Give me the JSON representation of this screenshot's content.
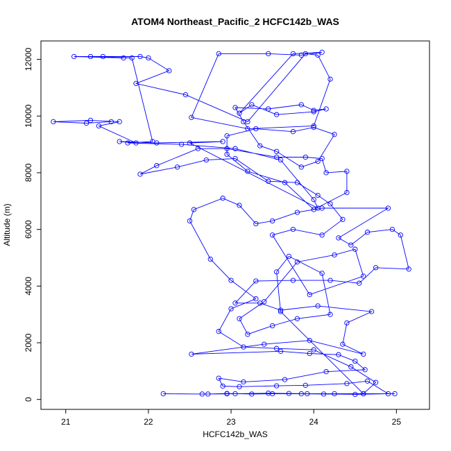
{
  "chart_data": {
    "type": "line",
    "title": "ATOM4 Northeast_Pacific_2 HCFC142b_WAS",
    "xlabel": "HCFC142b_WAS",
    "ylabel": "Altitude (m)",
    "xlim": [
      20.7,
      25.4
    ],
    "ylim": [
      -350,
      12650
    ],
    "x_ticks": [
      21,
      22,
      23,
      24,
      25
    ],
    "y_ticks": [
      0,
      2000,
      4000,
      6000,
      8000,
      10000,
      12000
    ],
    "x_tick_labels": [
      "21",
      "22",
      "23",
      "24",
      "25"
    ],
    "y_tick_labels": [
      "0",
      "2000",
      "4000",
      "6000",
      "8000",
      "10000",
      "12000"
    ],
    "marker": "open-circle",
    "grid": false,
    "series": [
      {
        "color": "#0000ff",
        "points": [
          [
            22.18,
            200
          ],
          [
            22.65,
            190
          ],
          [
            22.95,
            200
          ],
          [
            23.5,
            200
          ],
          [
            23.92,
            200
          ],
          [
            24.25,
            200
          ],
          [
            24.98,
            200
          ],
          [
            24.6,
            200
          ],
          [
            24.12,
            190
          ],
          [
            23.85,
            200
          ],
          [
            23.45,
            220
          ],
          [
            23.05,
            200
          ],
          [
            22.72,
            190
          ],
          [
            22.95,
            210
          ],
          [
            23.25,
            190
          ],
          [
            23.7,
            210
          ],
          [
            24.5,
            180
          ],
          [
            24.9,
            200
          ],
          [
            24.65,
            650
          ],
          [
            24.4,
            560
          ],
          [
            23.9,
            500
          ],
          [
            23.55,
            480
          ],
          [
            23.1,
            450
          ],
          [
            22.9,
            470
          ],
          [
            22.85,
            750
          ],
          [
            23.15,
            620
          ],
          [
            23.65,
            700
          ],
          [
            24.15,
            980
          ],
          [
            24.62,
            1050
          ],
          [
            24.5,
            1350
          ],
          [
            24.3,
            1580
          ],
          [
            23.95,
            1620
          ],
          [
            23.6,
            1700
          ],
          [
            22.52,
            1600
          ],
          [
            23.4,
            1950
          ],
          [
            23.95,
            2080
          ],
          [
            24.6,
            1600
          ],
          [
            24.35,
            1950
          ],
          [
            24.4,
            2700
          ],
          [
            24.7,
            3100
          ],
          [
            24.05,
            3300
          ],
          [
            23.6,
            3150
          ],
          [
            23.35,
            3400
          ],
          [
            23.05,
            3400
          ],
          [
            23.3,
            4180
          ],
          [
            23.75,
            4200
          ],
          [
            24.2,
            4200
          ],
          [
            24.55,
            4100
          ],
          [
            24.75,
            4650
          ],
          [
            25.15,
            4600
          ],
          [
            25.05,
            5800
          ],
          [
            24.95,
            6000
          ],
          [
            24.65,
            5900
          ],
          [
            24.45,
            5450
          ],
          [
            24.3,
            5700
          ],
          [
            24.9,
            6750
          ],
          [
            24.1,
            6750
          ],
          [
            23.8,
            6600
          ],
          [
            23.5,
            6300
          ],
          [
            23.3,
            6200
          ],
          [
            23.1,
            6850
          ],
          [
            22.9,
            7100
          ],
          [
            22.55,
            6700
          ],
          [
            22.5,
            6300
          ],
          [
            22.75,
            4950
          ],
          [
            23.0,
            4200
          ],
          [
            23.3,
            3550
          ],
          [
            23.0,
            3200
          ],
          [
            22.85,
            2400
          ],
          [
            23.15,
            1850
          ],
          [
            23.55,
            1800
          ],
          [
            24.0,
            1750
          ],
          [
            24.45,
            1150
          ],
          [
            24.75,
            600
          ],
          [
            24.6,
            200
          ],
          [
            23.6,
            3100
          ],
          [
            23.55,
            4500
          ],
          [
            23.7,
            5050
          ],
          [
            24.1,
            4450
          ],
          [
            24.2,
            3000
          ],
          [
            23.8,
            2850
          ],
          [
            23.5,
            2600
          ],
          [
            23.2,
            2300
          ],
          [
            23.1,
            2850
          ],
          [
            23.4,
            3450
          ],
          [
            23.8,
            4850
          ],
          [
            24.25,
            5100
          ],
          [
            24.5,
            5300
          ],
          [
            24.6,
            4350
          ],
          [
            23.95,
            3700
          ],
          [
            23.5,
            5800
          ],
          [
            23.75,
            6000
          ],
          [
            24.1,
            5800
          ],
          [
            24.35,
            6350
          ],
          [
            24.2,
            6900
          ],
          [
            24.05,
            7200
          ],
          [
            23.8,
            7650
          ],
          [
            23.45,
            7700
          ],
          [
            23.05,
            8500
          ],
          [
            22.7,
            8450
          ],
          [
            22.35,
            8200
          ],
          [
            21.9,
            7950
          ],
          [
            22.1,
            8250
          ],
          [
            22.6,
            8850
          ],
          [
            22.95,
            8850
          ],
          [
            23.55,
            8550
          ],
          [
            23.9,
            8550
          ],
          [
            24.1,
            8500
          ],
          [
            24.15,
            8000
          ],
          [
            24.4,
            8050
          ],
          [
            24.4,
            7300
          ],
          [
            24.0,
            6700
          ],
          [
            23.65,
            7650
          ],
          [
            23.2,
            8050
          ],
          [
            22.95,
            8650
          ],
          [
            22.95,
            9300
          ],
          [
            23.3,
            9550
          ],
          [
            23.75,
            9450
          ],
          [
            24.0,
            9600
          ],
          [
            24.25,
            9350
          ],
          [
            24.05,
            8400
          ],
          [
            23.85,
            8200
          ],
          [
            23.55,
            8750
          ],
          [
            23.35,
            8950
          ],
          [
            23.15,
            9800
          ],
          [
            23.05,
            10300
          ],
          [
            23.45,
            10250
          ],
          [
            23.85,
            10400
          ],
          [
            24.0,
            10200
          ],
          [
            24.15,
            10250
          ],
          [
            24.0,
            10150
          ],
          [
            23.55,
            10050
          ],
          [
            23.25,
            10400
          ],
          [
            23.1,
            10100
          ],
          [
            23.75,
            12200
          ],
          [
            24.1,
            12250
          ],
          [
            23.85,
            12150
          ],
          [
            23.45,
            12200
          ],
          [
            22.85,
            12200
          ],
          [
            22.52,
            9950
          ],
          [
            23.2,
            9550
          ],
          [
            24.0,
            9650
          ],
          [
            24.2,
            11300
          ],
          [
            24.05,
            12150
          ],
          [
            23.9,
            12200
          ],
          [
            23.2,
            9800
          ],
          [
            22.45,
            10750
          ],
          [
            21.85,
            11150
          ],
          [
            22.25,
            11600
          ],
          [
            22.0,
            12050
          ],
          [
            21.9,
            12100
          ],
          [
            21.1,
            12100
          ],
          [
            21.7,
            12050
          ],
          [
            21.45,
            12100
          ],
          [
            21.3,
            12100
          ],
          [
            21.8,
            12050
          ],
          [
            22.05,
            9100
          ],
          [
            21.75,
            9050
          ],
          [
            22.4,
            9000
          ],
          [
            23.05,
            8850
          ],
          [
            23.6,
            8450
          ],
          [
            24.0,
            7050
          ],
          [
            24.05,
            6750
          ],
          [
            22.5,
            9050
          ],
          [
            22.9,
            9100
          ],
          [
            22.1,
            9050
          ],
          [
            21.65,
            9100
          ],
          [
            21.85,
            9050
          ],
          [
            21.4,
            9650
          ],
          [
            21.65,
            9800
          ],
          [
            21.3,
            9850
          ],
          [
            20.85,
            9800
          ],
          [
            21.25,
            9750
          ],
          [
            21.55,
            9800
          ]
        ]
      }
    ]
  }
}
